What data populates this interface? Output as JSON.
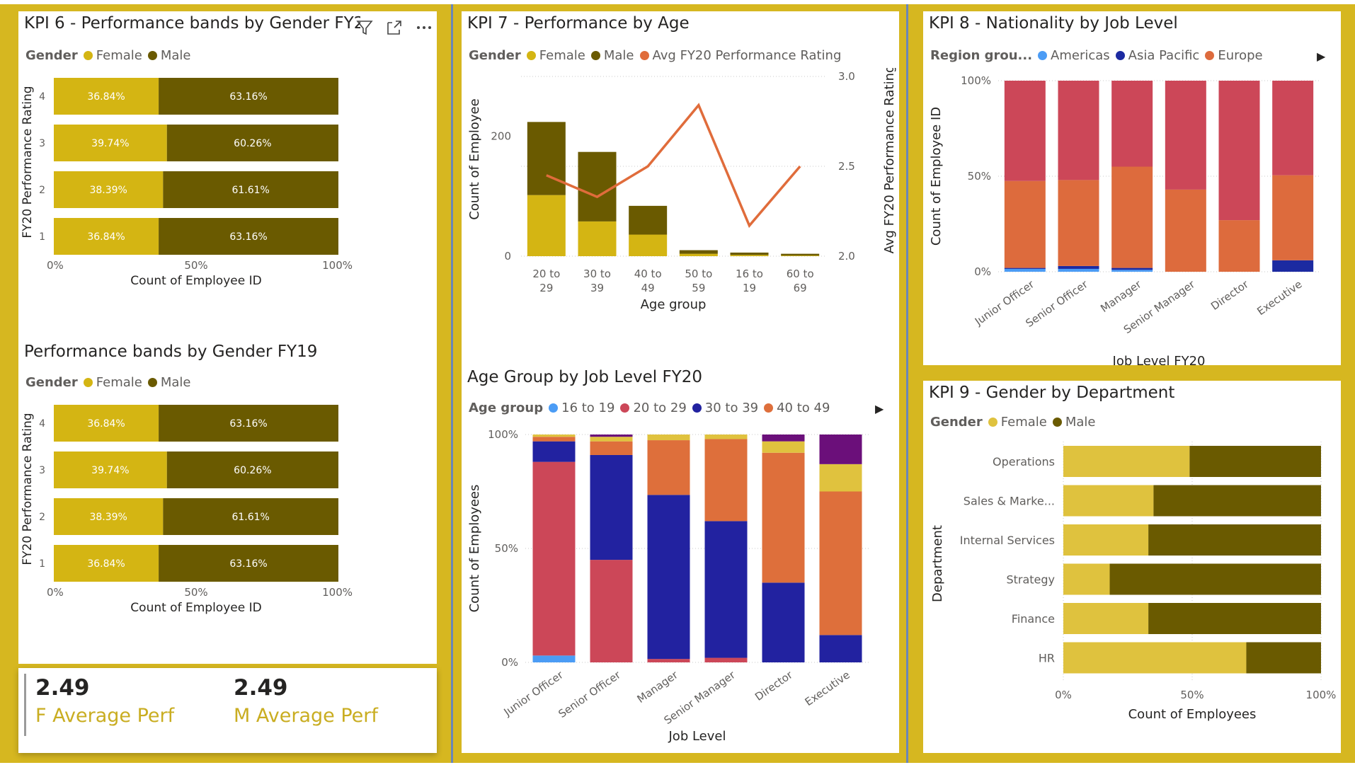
{
  "colors": {
    "background": "#d6b720",
    "female": "#d4b513",
    "male": "#6a5a00",
    "line": "#e06c3b",
    "americas": "#4b9cf5",
    "asia_pacific": "#1c2aa1",
    "europe": "#dd6b3d",
    "other_region": "#cc4758",
    "age_16_19": "#4b9cf5",
    "age_20_29": "#cc4758",
    "age_30_39": "#2222a0",
    "age_40_49": "#de6f3b",
    "age_50_59": "#e0c23e",
    "age_60_69": "#6b0f7a",
    "dept_female": "#dfc23e",
    "dept_male": "#6a5a00"
  },
  "kpi6": {
    "title": "KPI 6 - Performance bands by Gender FY20",
    "legend_title": "Gender",
    "legend": [
      "Female",
      "Male"
    ],
    "icons": [
      "filter-icon",
      "focus-mode-icon",
      "more-options-icon"
    ]
  },
  "fy19": {
    "title": "Performance bands by Gender FY19",
    "legend_title": "Gender",
    "legend": [
      "Female",
      "Male"
    ]
  },
  "kpi7": {
    "title": "KPI 7 - Performance by Age",
    "legend_title": "Gender",
    "legend": [
      "Female",
      "Male",
      "Avg FY20 Performance Rating"
    ]
  },
  "agejob": {
    "title": "Age Group by Job Level FY20",
    "legend_title": "Age group",
    "legend": [
      "16 to 19",
      "20 to 29",
      "30 to 39",
      "40 to 49"
    ]
  },
  "kpi8": {
    "title": "KPI 8 - Nationality by Job Level",
    "legend_title": "Region grou...",
    "legend": [
      "Americas",
      "Asia Pacific",
      "Europe"
    ]
  },
  "kpi9": {
    "title": "KPI 9 - Gender by Department",
    "legend_title": "Gender",
    "legend": [
      "Female",
      "Male"
    ]
  },
  "cards": {
    "f_value": "2.49",
    "f_label": "F Average Perf",
    "m_value": "2.49",
    "m_label": "M Average Perf"
  },
  "chart_data": [
    {
      "id": "kpi6",
      "type": "bar",
      "orientation": "horizontal",
      "stacked": "100%",
      "categories": [
        "4",
        "3",
        "2",
        "1"
      ],
      "series": [
        {
          "name": "Female",
          "values": [
            36.84,
            39.74,
            38.39,
            36.84
          ],
          "labels": [
            "36.84%",
            "39.74%",
            "38.39%",
            "36.84%"
          ]
        },
        {
          "name": "Male",
          "values": [
            63.16,
            60.26,
            61.61,
            63.16
          ],
          "labels": [
            "63.16%",
            "60.26%",
            "61.61%",
            "63.16%"
          ]
        }
      ],
      "xlabel": "Count of Employee ID",
      "ylabel": "FY20 Performance Rating",
      "xticks": [
        "0%",
        "50%",
        "100%"
      ]
    },
    {
      "id": "fy19",
      "type": "bar",
      "orientation": "horizontal",
      "stacked": "100%",
      "categories": [
        "4",
        "3",
        "2",
        "1"
      ],
      "series": [
        {
          "name": "Female",
          "values": [
            36.84,
            39.74,
            38.39,
            36.84
          ],
          "labels": [
            "36.84%",
            "39.74%",
            "38.39%",
            "36.84%"
          ]
        },
        {
          "name": "Male",
          "values": [
            63.16,
            60.26,
            61.61,
            63.16
          ],
          "labels": [
            "63.16%",
            "60.26%",
            "61.61%",
            "63.16%"
          ]
        }
      ],
      "xlabel": "Count of Employee ID",
      "ylabel": "FY20 Performance Rating",
      "xticks": [
        "0%",
        "50%",
        "100%"
      ]
    },
    {
      "id": "kpi7",
      "type": "bar",
      "stacked": true,
      "categories": [
        "20 to\n29",
        "30 to\n39",
        "40 to\n49",
        "50 to\n59",
        "16 to\n19",
        "60 to\n69"
      ],
      "series": [
        {
          "name": "Female",
          "values": [
            102,
            58,
            36,
            4,
            2,
            1
          ]
        },
        {
          "name": "Male",
          "values": [
            122,
            116,
            48,
            6,
            4,
            3
          ]
        },
        {
          "name": "Avg FY20 Performance Rating",
          "type": "line",
          "axis": "right",
          "values": [
            2.45,
            2.33,
            2.5,
            2.84,
            2.17,
            2.5
          ]
        }
      ],
      "xlabel": "Age group",
      "ylabel": "Count of Employee",
      "y2label": "Avg FY20 Performance Rating",
      "ylim": [
        0,
        300
      ],
      "yticks": [
        "0",
        "200"
      ],
      "y2lim": [
        2.0,
        3.0
      ],
      "y2ticks": [
        "2.0",
        "2.5",
        "3.0"
      ]
    },
    {
      "id": "agejob",
      "type": "bar",
      "stacked": "100%",
      "categories": [
        "Junior Officer",
        "Senior Officer",
        "Manager",
        "Senior Manager",
        "Director",
        "Executive"
      ],
      "series": [
        {
          "name": "16 to 19",
          "values": [
            3,
            0,
            0,
            0,
            0,
            0
          ]
        },
        {
          "name": "20 to 29",
          "values": [
            85,
            45,
            1.5,
            2,
            0,
            0
          ]
        },
        {
          "name": "30 to 39",
          "values": [
            9,
            46,
            72,
            60,
            35,
            12
          ]
        },
        {
          "name": "40 to 49",
          "values": [
            2,
            6,
            24,
            36,
            57,
            63
          ]
        },
        {
          "name": "50 to 59",
          "values": [
            1,
            2,
            2.5,
            2,
            5,
            12
          ]
        },
        {
          "name": "60 to 69",
          "values": [
            0,
            1,
            0,
            0,
            3,
            13
          ]
        }
      ],
      "xlabel": "Job Level",
      "ylabel": "Count of Employees",
      "yticks": [
        "0%",
        "50%",
        "100%"
      ]
    },
    {
      "id": "kpi8",
      "type": "bar",
      "stacked": "100%",
      "categories": [
        "Junior Officer",
        "Senior Officer",
        "Manager",
        "Senior Manager",
        "Director",
        "Executive"
      ],
      "series": [
        {
          "name": "Americas",
          "values": [
            1.5,
            1.5,
            1,
            0,
            0,
            0
          ]
        },
        {
          "name": "Asia Pacific",
          "values": [
            0.5,
            1.5,
            1,
            0,
            0,
            6
          ]
        },
        {
          "name": "Europe",
          "values": [
            45.5,
            45,
            53,
            43,
            27,
            44.5
          ]
        },
        {
          "name": "",
          "values": [
            52.5,
            52,
            45,
            57,
            73,
            49.5
          ]
        }
      ],
      "xlabel": "Job Level FY20",
      "ylabel": "Count of Employee ID",
      "yticks": [
        "0%",
        "50%",
        "100%"
      ]
    },
    {
      "id": "kpi9",
      "type": "bar",
      "orientation": "horizontal",
      "stacked": "100%",
      "categories": [
        "Operations",
        "Sales & Marke...",
        "Internal Services",
        "Strategy",
        "Finance",
        "HR"
      ],
      "series": [
        {
          "name": "Female",
          "values": [
            49,
            35,
            33,
            18,
            33,
            71
          ]
        },
        {
          "name": "Male",
          "values": [
            51,
            65,
            67,
            82,
            67,
            29
          ]
        }
      ],
      "xlabel": "Count of Employees",
      "ylabel": "Department",
      "xticks": [
        "0%",
        "50%",
        "100%"
      ]
    }
  ]
}
